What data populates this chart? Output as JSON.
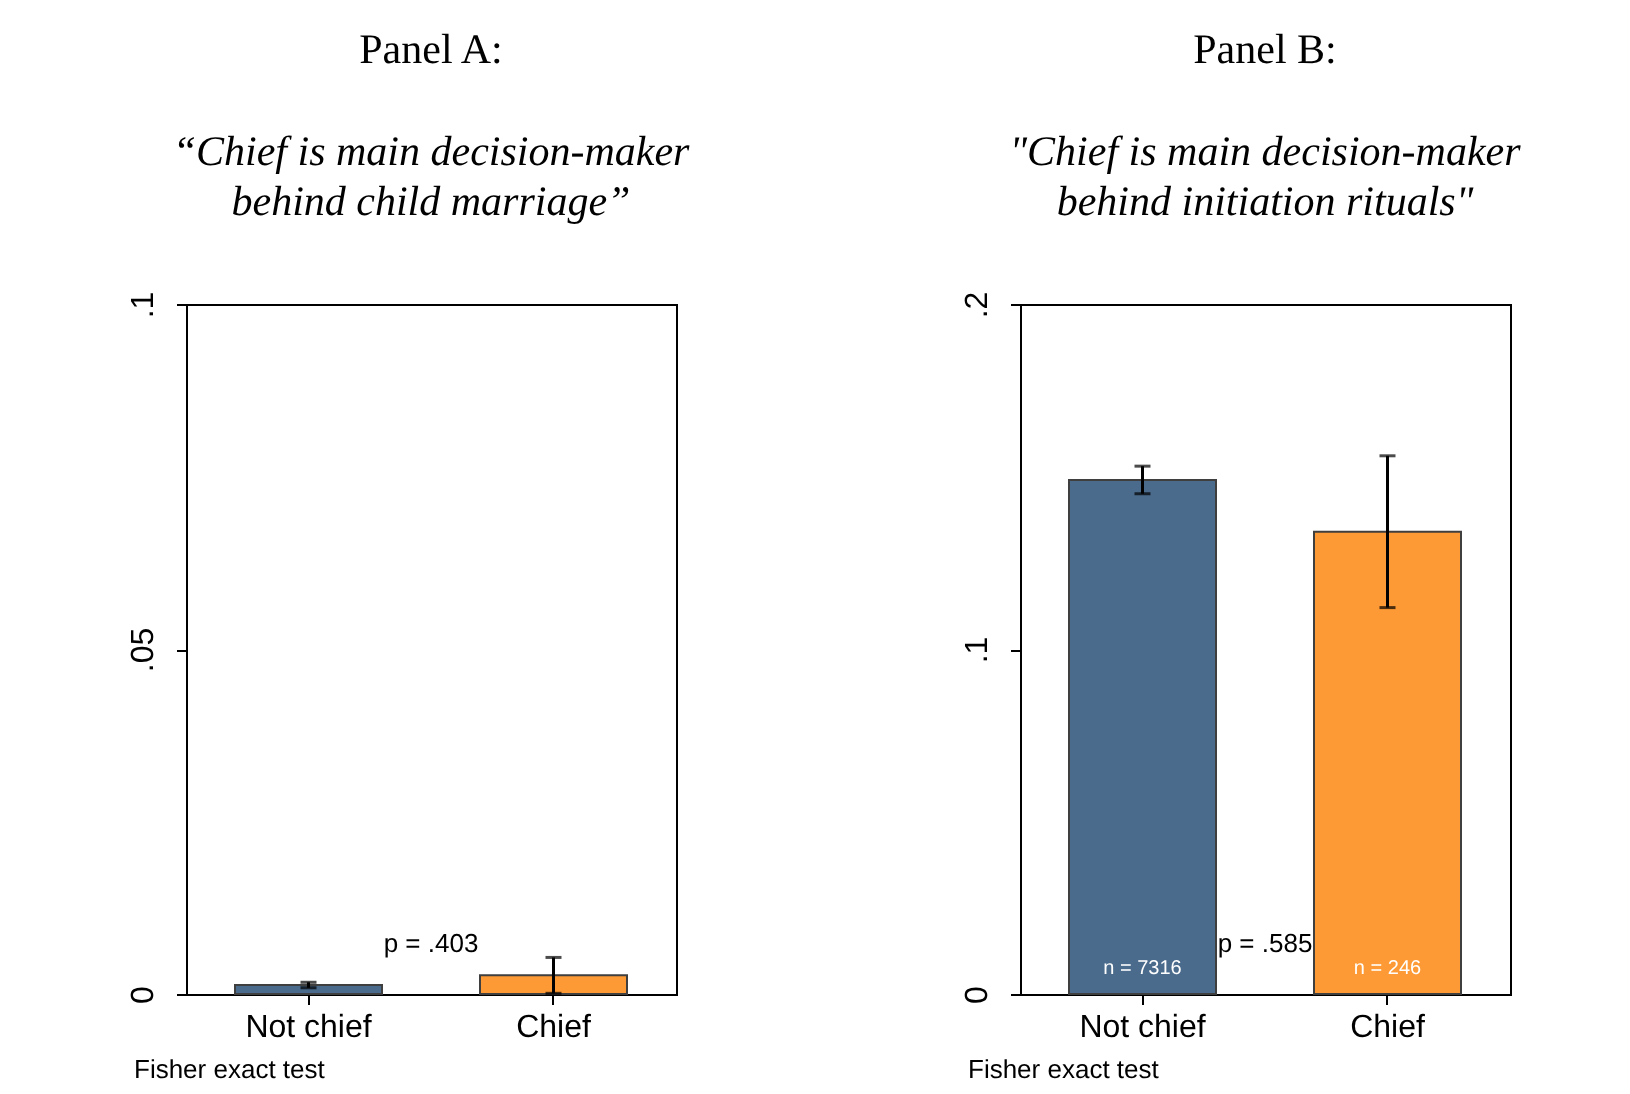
{
  "chart_data": [
    {
      "type": "bar",
      "title": "Panel A:",
      "subtitle": "“Chief is main decision-maker behind child marriage”",
      "categories": [
        "Not chief",
        "Chief"
      ],
      "values": [
        0.0013,
        0.0027
      ],
      "colors": [
        "#4a6b8c",
        "#fe9a35"
      ],
      "errors": [
        0.0004,
        0.0026
      ],
      "ylim": [
        0,
        0.1
      ],
      "yticks": [
        0,
        {
          "value": 0.05,
          "label": ".05"
        },
        {
          "value": 0.1,
          "label": ".1"
        }
      ],
      "annotations": [
        "p = .403",
        "Fisher exact test"
      ]
    },
    {
      "type": "bar",
      "title": "Panel B:",
      "subtitle": "\"Chief is main decision-maker behind initiation rituals\"",
      "categories": [
        "Not chief",
        "Chief"
      ],
      "values": [
        0.149,
        0.134
      ],
      "colors": [
        "#4a6b8c",
        "#fe9a35"
      ],
      "errors": [
        0.004,
        0.022
      ],
      "ylim": [
        0,
        0.2
      ],
      "yticks": [
        0,
        {
          "value": 0.1,
          "label": ".1"
        },
        {
          "value": 0.2,
          "label": ".2"
        }
      ],
      "annotations": [
        {
          "text": "n = 7316",
          "x": "Not chief",
          "y": 0
        },
        {
          "text": "n = 246",
          "x": "Chief",
          "y": 0
        },
        "p = .585",
        "Fisher exact test"
      ]
    }
  ]
}
